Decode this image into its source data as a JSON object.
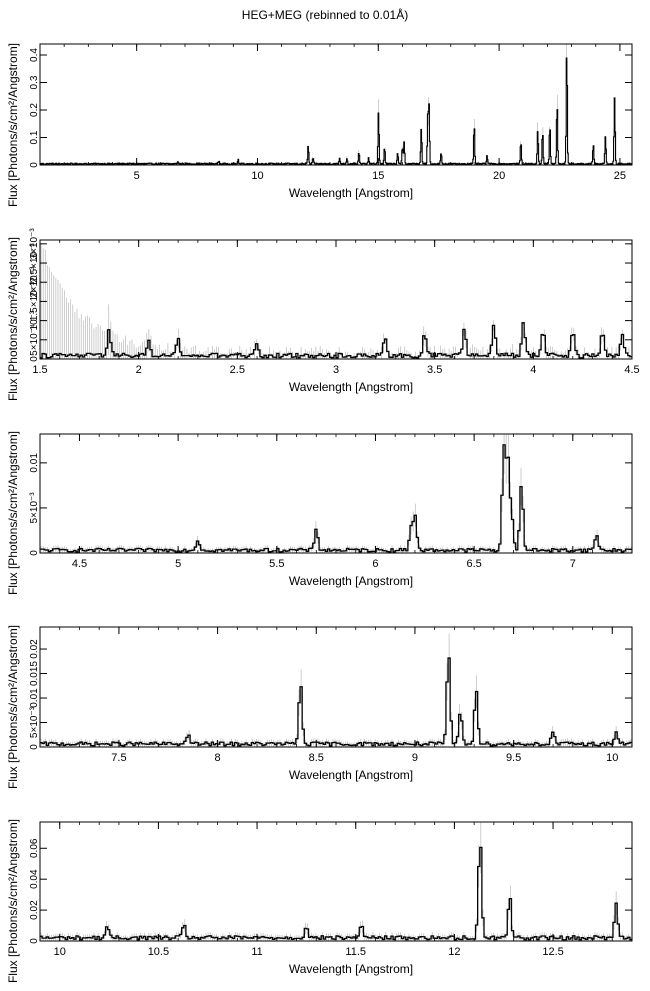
{
  "figure": {
    "title": "HEG+MEG (rebinned to 0.01Å)"
  },
  "chart_data": [
    {
      "type": "line",
      "xlabel": "Wavelength [Angstrom]",
      "ylabel": "Flux [Photons/s/cm²/Angstrom]",
      "xlim": [
        1.0,
        25.5
      ],
      "ylim": [
        0,
        0.44
      ],
      "xticks": [
        {
          "v": 5,
          "label": "5"
        },
        {
          "v": 10,
          "label": "10"
        },
        {
          "v": 15,
          "label": "15"
        },
        {
          "v": 20,
          "label": "20"
        },
        {
          "v": 25,
          "label": "25"
        }
      ],
      "yticks": [
        {
          "v": 0,
          "label": "0"
        },
        {
          "v": 0.1,
          "label": "0.1"
        },
        {
          "v": 0.2,
          "label": "0.2"
        },
        {
          "v": 0.3,
          "label": "0.3"
        },
        {
          "v": 0.4,
          "label": "0.4"
        }
      ],
      "baseline": 0.004,
      "lines": [
        [
          6.7,
          0.008
        ],
        [
          8.4,
          0.01
        ],
        [
          9.2,
          0.015
        ],
        [
          12.1,
          0.065
        ],
        [
          12.3,
          0.02
        ],
        [
          13.4,
          0.02
        ],
        [
          13.7,
          0.02
        ],
        [
          14.2,
          0.04
        ],
        [
          14.6,
          0.02
        ],
        [
          15.01,
          0.19
        ],
        [
          15.26,
          0.06
        ],
        [
          15.8,
          0.04
        ],
        [
          16.0,
          0.06
        ],
        [
          16.07,
          0.08
        ],
        [
          16.78,
          0.13
        ],
        [
          17.05,
          0.17
        ],
        [
          17.1,
          0.21
        ],
        [
          17.6,
          0.04
        ],
        [
          18.97,
          0.14
        ],
        [
          19.5,
          0.03
        ],
        [
          20.9,
          0.08
        ],
        [
          21.6,
          0.12
        ],
        [
          21.8,
          0.12
        ],
        [
          22.1,
          0.14
        ],
        [
          22.4,
          0.22
        ],
        [
          22.8,
          0.42
        ],
        [
          23.9,
          0.07
        ],
        [
          24.4,
          0.1
        ],
        [
          24.78,
          0.24
        ]
      ]
    },
    {
      "type": "line",
      "xlabel": "Wavelength [Angstrom]",
      "ylabel": "Flux [Photons/s/cm²/Angstrom]",
      "xlim": [
        1.5,
        4.5
      ],
      "ylim": [
        0,
        0.0031
      ],
      "xticks": [
        {
          "v": 1.5,
          "label": "1.5"
        },
        {
          "v": 2,
          "label": "2"
        },
        {
          "v": 2.5,
          "label": "2.5"
        },
        {
          "v": 3,
          "label": "3"
        },
        {
          "v": 3.5,
          "label": "3.5"
        },
        {
          "v": 4,
          "label": "4"
        },
        {
          "v": 4.5,
          "label": "4.5"
        }
      ],
      "yticks": [
        {
          "v": 0,
          "label": "0"
        },
        {
          "v": 0.0005,
          "label": "5×10⁻⁴"
        },
        {
          "v": 0.001,
          "label": "10⁻³"
        },
        {
          "v": 0.0015,
          "label": "1.5×10⁻³"
        },
        {
          "v": 0.002,
          "label": "2×10⁻³"
        },
        {
          "v": 0.0025,
          "label": "2.5×10⁻³"
        },
        {
          "v": 0.003,
          "label": "3×10⁻³"
        }
      ],
      "baseline": 0.0001,
      "lines": [
        [
          1.85,
          0.0007
        ],
        [
          2.05,
          0.0004
        ],
        [
          2.2,
          0.0004
        ],
        [
          2.6,
          0.0003
        ],
        [
          3.25,
          0.0005
        ],
        [
          3.45,
          0.0006
        ],
        [
          3.65,
          0.0007
        ],
        [
          3.8,
          0.0008
        ],
        [
          3.95,
          0.0009
        ],
        [
          4.05,
          0.0007
        ],
        [
          4.2,
          0.0006
        ],
        [
          4.35,
          0.0007
        ],
        [
          4.45,
          0.0005
        ]
      ]
    },
    {
      "type": "line",
      "xlabel": "Wavelength [Angstrom]",
      "ylabel": "Flux [Photons/s/cm²/Angstrom]",
      "xlim": [
        4.3,
        7.3
      ],
      "ylim": [
        0,
        0.0132
      ],
      "xticks": [
        {
          "v": 4.5,
          "label": "4.5"
        },
        {
          "v": 5,
          "label": "5"
        },
        {
          "v": 5.5,
          "label": "5.5"
        },
        {
          "v": 6,
          "label": "6"
        },
        {
          "v": 6.5,
          "label": "6.5"
        },
        {
          "v": 7,
          "label": "7"
        }
      ],
      "yticks": [
        {
          "v": 0,
          "label": "0"
        },
        {
          "v": 0.005,
          "label": "5×10⁻³"
        },
        {
          "v": 0.01,
          "label": "0.01"
        }
      ],
      "baseline": 0.0003,
      "lines": [
        [
          5.1,
          0.0012
        ],
        [
          5.7,
          0.0025
        ],
        [
          6.18,
          0.0025
        ],
        [
          6.2,
          0.004
        ],
        [
          6.65,
          0.0108
        ],
        [
          6.67,
          0.0103
        ],
        [
          6.69,
          0.004
        ],
        [
          6.74,
          0.0075
        ],
        [
          7.12,
          0.0018
        ]
      ]
    },
    {
      "type": "line",
      "xlabel": "Wavelength [Angstrom]",
      "ylabel": "Flux [Photons/s/cm²/Angstrom]",
      "xlim": [
        7.1,
        10.1
      ],
      "ylim": [
        0,
        0.0245
      ],
      "xticks": [
        {
          "v": 7.5,
          "label": "7.5"
        },
        {
          "v": 8,
          "label": "8"
        },
        {
          "v": 8.5,
          "label": "8.5"
        },
        {
          "v": 9,
          "label": "9"
        },
        {
          "v": 9.5,
          "label": "9.5"
        },
        {
          "v": 10,
          "label": "10"
        }
      ],
      "yticks": [
        {
          "v": 0,
          "label": "0"
        },
        {
          "v": 0.005,
          "label": "5×10⁻³"
        },
        {
          "v": 0.01,
          "label": "0.01"
        },
        {
          "v": 0.015,
          "label": "0.015"
        },
        {
          "v": 0.02,
          "label": "0.02"
        }
      ],
      "baseline": 0.0006,
      "lines": [
        [
          7.85,
          0.002
        ],
        [
          8.42,
          0.0125
        ],
        [
          9.17,
          0.0185
        ],
        [
          9.23,
          0.0065
        ],
        [
          9.31,
          0.0115
        ],
        [
          9.7,
          0.0025
        ],
        [
          10.02,
          0.0025
        ]
      ]
    },
    {
      "type": "line",
      "xlabel": "Wavelength [Angstrom]",
      "ylabel": "Flux [Photons/s/cm²/Angstrom]",
      "xlim": [
        9.9,
        12.9
      ],
      "ylim": [
        0,
        0.077
      ],
      "xticks": [
        {
          "v": 10,
          "label": "10"
        },
        {
          "v": 10.5,
          "label": "10.5"
        },
        {
          "v": 11,
          "label": "11"
        },
        {
          "v": 11.5,
          "label": "11.5"
        },
        {
          "v": 12,
          "label": "12"
        },
        {
          "v": 12.5,
          "label": "12.5"
        }
      ],
      "yticks": [
        {
          "v": 0,
          "label": "0"
        },
        {
          "v": 0.02,
          "label": "0.02"
        },
        {
          "v": 0.04,
          "label": "0.04"
        },
        {
          "v": 0.06,
          "label": "0.06"
        }
      ],
      "baseline": 0.002,
      "lines": [
        [
          10.24,
          0.007
        ],
        [
          10.63,
          0.008
        ],
        [
          11.25,
          0.008
        ],
        [
          11.53,
          0.009
        ],
        [
          12.13,
          0.065
        ],
        [
          12.28,
          0.027
        ],
        [
          12.82,
          0.022
        ]
      ]
    }
  ]
}
